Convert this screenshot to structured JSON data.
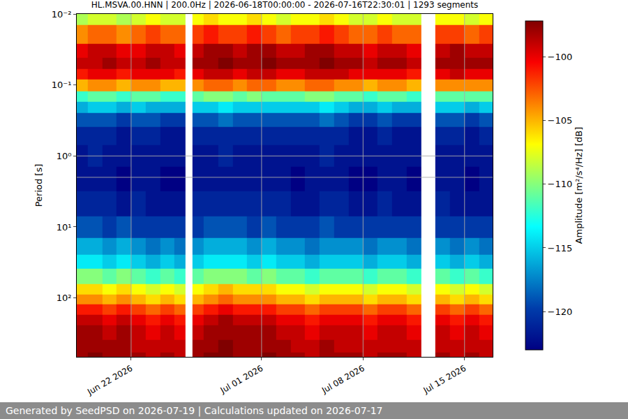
{
  "chart_data": {
    "type": "heatmap",
    "title": "HL.MSVA.00.HNN | 200.0Hz | 2026-06-18T00:00:00 - 2026-07-16T22:30:01 | 1293 segments",
    "annotation": "Generated by SeedPSD on 2026-07-19 | Calculations updated on 2026-07-17",
    "y_label": "Period [s]",
    "colorbar_title": "Amplitude [m²/s⁴/Hz] [dB]",
    "log": "y",
    "grid": true,
    "xlim": [
      "2026-06-18 06:00",
      "2026-07-16 22:30"
    ],
    "xticks": [
      {
        "value": "2026-06-22",
        "label": "Jun 22 2026"
      },
      {
        "value": "2026-07-01",
        "label": "Jul 01 2026"
      },
      {
        "value": "2026-07-08",
        "label": "Jul 08 2026"
      },
      {
        "value": "2026-07-15",
        "label": "Jul 15 2026"
      }
    ],
    "ylim": [
      0.01,
      676
    ],
    "yticks": [
      {
        "value": 0.01,
        "label": "10⁻²"
      },
      {
        "value": 0.1,
        "label": "10⁻¹"
      },
      {
        "value": 1,
        "label": "10⁰"
      },
      {
        "value": 10,
        "label": "10¹"
      },
      {
        "value": 100,
        "label": "10²"
      }
    ],
    "zlim": [
      -123,
      -97.2
    ],
    "zticks": [
      {
        "value": -100,
        "label": "−100"
      },
      {
        "value": -105,
        "label": "−105"
      },
      {
        "value": -110,
        "label": "−110"
      },
      {
        "value": -115,
        "label": "−115"
      },
      {
        "value": -120,
        "label": "−120"
      }
    ],
    "x": [
      "2026-06-18 12:00",
      "2026-06-19 12:00",
      "2026-06-20 12:00",
      "2026-06-21 12:00",
      "2026-06-22 12:00",
      "2026-06-23 12:00",
      "2026-06-24 12:00",
      "2026-06-25 12:00",
      "2026-06-26 00:00",
      "2026-06-26 12:00",
      "2026-06-27 12:00",
      "2026-06-28 12:00",
      "2026-06-29 12:00",
      "2026-06-30 12:00",
      "2026-07-01 12:00",
      "2026-07-02 12:00",
      "2026-07-03 12:00",
      "2026-07-04 12:00",
      "2026-07-05 12:00",
      "2026-07-06 12:00",
      "2026-07-07 12:00",
      "2026-07-08 12:00",
      "2026-07-09 12:00",
      "2026-07-10 12:00",
      "2026-07-11 12:00",
      "2026-07-12 12:00",
      "2026-07-13 12:00",
      "2026-07-14 12:00",
      "2026-07-15 12:00",
      "2026-07-16 12:00"
    ],
    "y": [
      0.01,
      0.02,
      0.035,
      0.05,
      0.07,
      0.1,
      0.15,
      0.2,
      0.3,
      0.5,
      1,
      2,
      5,
      10,
      20,
      30,
      50,
      80,
      100,
      150,
      200,
      300,
      500,
      700
    ],
    "z": [
      [
        -109,
        -108,
        -108,
        -109,
        -108,
        -107,
        -108,
        -108,
        null,
        -107,
        -106,
        -107,
        -107,
        -106,
        -107,
        -108,
        -107,
        -107,
        -106,
        -107,
        -108,
        -108,
        -107,
        -108,
        -108,
        null,
        -107,
        -107,
        -108,
        -107
      ],
      [
        -104,
        -103,
        -103,
        -104,
        -103,
        -102,
        -103,
        -103,
        null,
        -102,
        -101,
        -102,
        -102,
        -101,
        -102,
        -103,
        -102,
        -102,
        -101,
        -102,
        -103,
        -103,
        -102,
        -103,
        -103,
        null,
        -102,
        -102,
        -103,
        -102
      ],
      [
        -100,
        -99,
        -99,
        -100,
        -100,
        -99,
        -99,
        -100,
        null,
        -99,
        -98,
        -98,
        -99,
        -98,
        -98,
        -99,
        -99,
        -98,
        -98,
        -99,
        -99,
        -100,
        -99,
        -99,
        -100,
        null,
        -99,
        -98,
        -99,
        -99
      ],
      [
        -99,
        -99,
        -98,
        -99,
        -99,
        -98,
        -99,
        -99,
        null,
        -98,
        -98,
        -97,
        -98,
        -98,
        -97,
        -98,
        -98,
        -98,
        -97,
        -98,
        -98,
        -99,
        -98,
        -98,
        -99,
        null,
        -98,
        -98,
        -98,
        -98
      ],
      [
        -101,
        -100,
        -100,
        -101,
        -100,
        -100,
        -100,
        -101,
        null,
        -100,
        -99,
        -99,
        -100,
        -99,
        -99,
        -100,
        -100,
        -99,
        -99,
        -99,
        -100,
        -100,
        -100,
        -100,
        -101,
        null,
        -100,
        -99,
        -100,
        -100
      ],
      [
        -105,
        -104,
        -104,
        -105,
        -104,
        -104,
        -105,
        -105,
        null,
        -104,
        -103,
        -103,
        -104,
        -103,
        -103,
        -104,
        -104,
        -103,
        -103,
        -104,
        -104,
        -105,
        -104,
        -104,
        -105,
        null,
        -104,
        -104,
        -104,
        -104
      ],
      [
        -112,
        -111,
        -111,
        -112,
        -111,
        -111,
        -112,
        -112,
        null,
        -111,
        -110,
        -110,
        -111,
        -110,
        -111,
        -111,
        -111,
        -110,
        -110,
        -111,
        -111,
        -112,
        -111,
        -111,
        -112,
        null,
        -111,
        -111,
        -111,
        -111
      ],
      [
        -116,
        -115,
        -115,
        -116,
        -115,
        -116,
        -116,
        -116,
        null,
        -115,
        -115,
        -114,
        -115,
        -115,
        -115,
        -115,
        -115,
        -115,
        -114,
        -115,
        -116,
        -116,
        -115,
        -116,
        -116,
        null,
        -115,
        -115,
        -116,
        -115
      ],
      [
        -119,
        -119,
        -119,
        -120,
        -119,
        -119,
        -120,
        -120,
        null,
        -119,
        -119,
        -118,
        -119,
        -119,
        -119,
        -119,
        -119,
        -119,
        -118,
        -119,
        -120,
        -120,
        -119,
        -120,
        -120,
        null,
        -119,
        -119,
        -120,
        -119
      ],
      [
        -121,
        -121,
        -121,
        -122,
        -121,
        -121,
        -122,
        -122,
        null,
        -121,
        -121,
        -121,
        -121,
        -121,
        -121,
        -121,
        -121,
        -121,
        -121,
        -121,
        -122,
        -122,
        -121,
        -122,
        -122,
        null,
        -121,
        -121,
        -122,
        -121
      ],
      [
        -122,
        -121,
        -122,
        -122,
        -122,
        -122,
        -122,
        -122,
        null,
        -122,
        -122,
        -121,
        -122,
        -122,
        -122,
        -122,
        -122,
        -122,
        -121,
        -122,
        -122,
        -122,
        -122,
        -122,
        -122,
        null,
        -122,
        -122,
        -122,
        -122
      ],
      [
        -122,
        -122,
        -122,
        -123,
        -122,
        -122,
        -123,
        -123,
        null,
        -122,
        -122,
        -122,
        -122,
        -122,
        -122,
        -122,
        -123,
        -122,
        -122,
        -122,
        -123,
        -123,
        -122,
        -122,
        -123,
        null,
        -122,
        -122,
        -123,
        -122
      ],
      [
        -121,
        -121,
        -121,
        -122,
        -121,
        -122,
        -122,
        -122,
        null,
        -121,
        -121,
        -121,
        -121,
        -121,
        -121,
        -121,
        -122,
        -122,
        -121,
        -121,
        -122,
        -122,
        -121,
        -122,
        -122,
        null,
        -121,
        -122,
        -122,
        -122
      ],
      [
        -119,
        -119,
        -120,
        -119,
        -120,
        -120,
        -120,
        -120,
        null,
        -120,
        -119,
        -119,
        -119,
        -120,
        -119,
        -120,
        -120,
        -120,
        -119,
        -120,
        -120,
        -120,
        -120,
        -120,
        -120,
        null,
        -120,
        -120,
        -120,
        -120
      ],
      [
        -116,
        -116,
        -117,
        -116,
        -117,
        -118,
        -117,
        -118,
        null,
        -117,
        -116,
        -116,
        -116,
        -117,
        -116,
        -117,
        -117,
        -118,
        -117,
        -117,
        -117,
        -118,
        -117,
        -117,
        -118,
        null,
        -117,
        -118,
        -117,
        -118
      ],
      [
        -114,
        -114,
        -115,
        -114,
        -115,
        -116,
        -115,
        -116,
        null,
        -115,
        -114,
        -114,
        -114,
        -115,
        -114,
        -115,
        -115,
        -116,
        -115,
        -115,
        -115,
        -116,
        -115,
        -115,
        -116,
        null,
        -115,
        -116,
        -115,
        -116
      ],
      [
        -110,
        -110,
        -111,
        -110,
        -111,
        -112,
        -111,
        -112,
        null,
        -111,
        -110,
        -110,
        -110,
        -111,
        -110,
        -111,
        -111,
        -112,
        -111,
        -111,
        -111,
        -112,
        -111,
        -111,
        -112,
        null,
        -111,
        -112,
        -111,
        -112
      ],
      [
        -106,
        -106,
        -107,
        -106,
        -107,
        -108,
        -107,
        -108,
        null,
        -107,
        -106,
        -105,
        -106,
        -106,
        -106,
        -107,
        -107,
        -108,
        -107,
        -107,
        -107,
        -108,
        -107,
        -107,
        -108,
        null,
        -107,
        -108,
        -107,
        -108
      ],
      [
        -104,
        -104,
        -105,
        -104,
        -105,
        -106,
        -105,
        -106,
        null,
        -105,
        -104,
        -103,
        -104,
        -104,
        -104,
        -105,
        -105,
        -106,
        -105,
        -105,
        -105,
        -106,
        -105,
        -105,
        -106,
        null,
        -105,
        -106,
        -105,
        -106
      ],
      [
        -101,
        -101,
        -102,
        -101,
        -102,
        -103,
        -102,
        -103,
        null,
        -102,
        -101,
        -100,
        -101,
        -101,
        -101,
        -102,
        -102,
        -103,
        -102,
        -102,
        -102,
        -103,
        -102,
        -102,
        -103,
        null,
        -102,
        -103,
        -102,
        -103
      ],
      [
        -99,
        -99,
        -100,
        -99,
        -100,
        -101,
        -100,
        -101,
        null,
        -100,
        -99,
        -98,
        -99,
        -99,
        -99,
        -100,
        -100,
        -101,
        -100,
        -100,
        -100,
        -101,
        -100,
        -100,
        -101,
        null,
        -100,
        -101,
        -100,
        -101
      ],
      [
        -98,
        -98,
        -99,
        -98,
        -99,
        -100,
        -99,
        -100,
        null,
        -99,
        -98,
        -98,
        -98,
        -98,
        -98,
        -99,
        -99,
        -100,
        -99,
        -99,
        -99,
        -100,
        -99,
        -99,
        -100,
        null,
        -99,
        -100,
        -99,
        -100
      ],
      [
        -98,
        -98,
        -98,
        -98,
        -99,
        -99,
        -99,
        -99,
        null,
        -98,
        -98,
        -97,
        -98,
        -98,
        -98,
        -98,
        -99,
        -99,
        -98,
        -99,
        -99,
        -99,
        -99,
        -99,
        -99,
        null,
        -99,
        -99,
        -99,
        -99
      ],
      [
        -98,
        -97,
        -98,
        -98,
        -98,
        -99,
        -98,
        -99,
        null,
        -98,
        -97,
        -97,
        -98,
        -98,
        -97,
        -98,
        -98,
        -99,
        -98,
        -98,
        -98,
        -99,
        -98,
        -98,
        -99,
        null,
        -98,
        -99,
        -98,
        -99
      ]
    ]
  }
}
